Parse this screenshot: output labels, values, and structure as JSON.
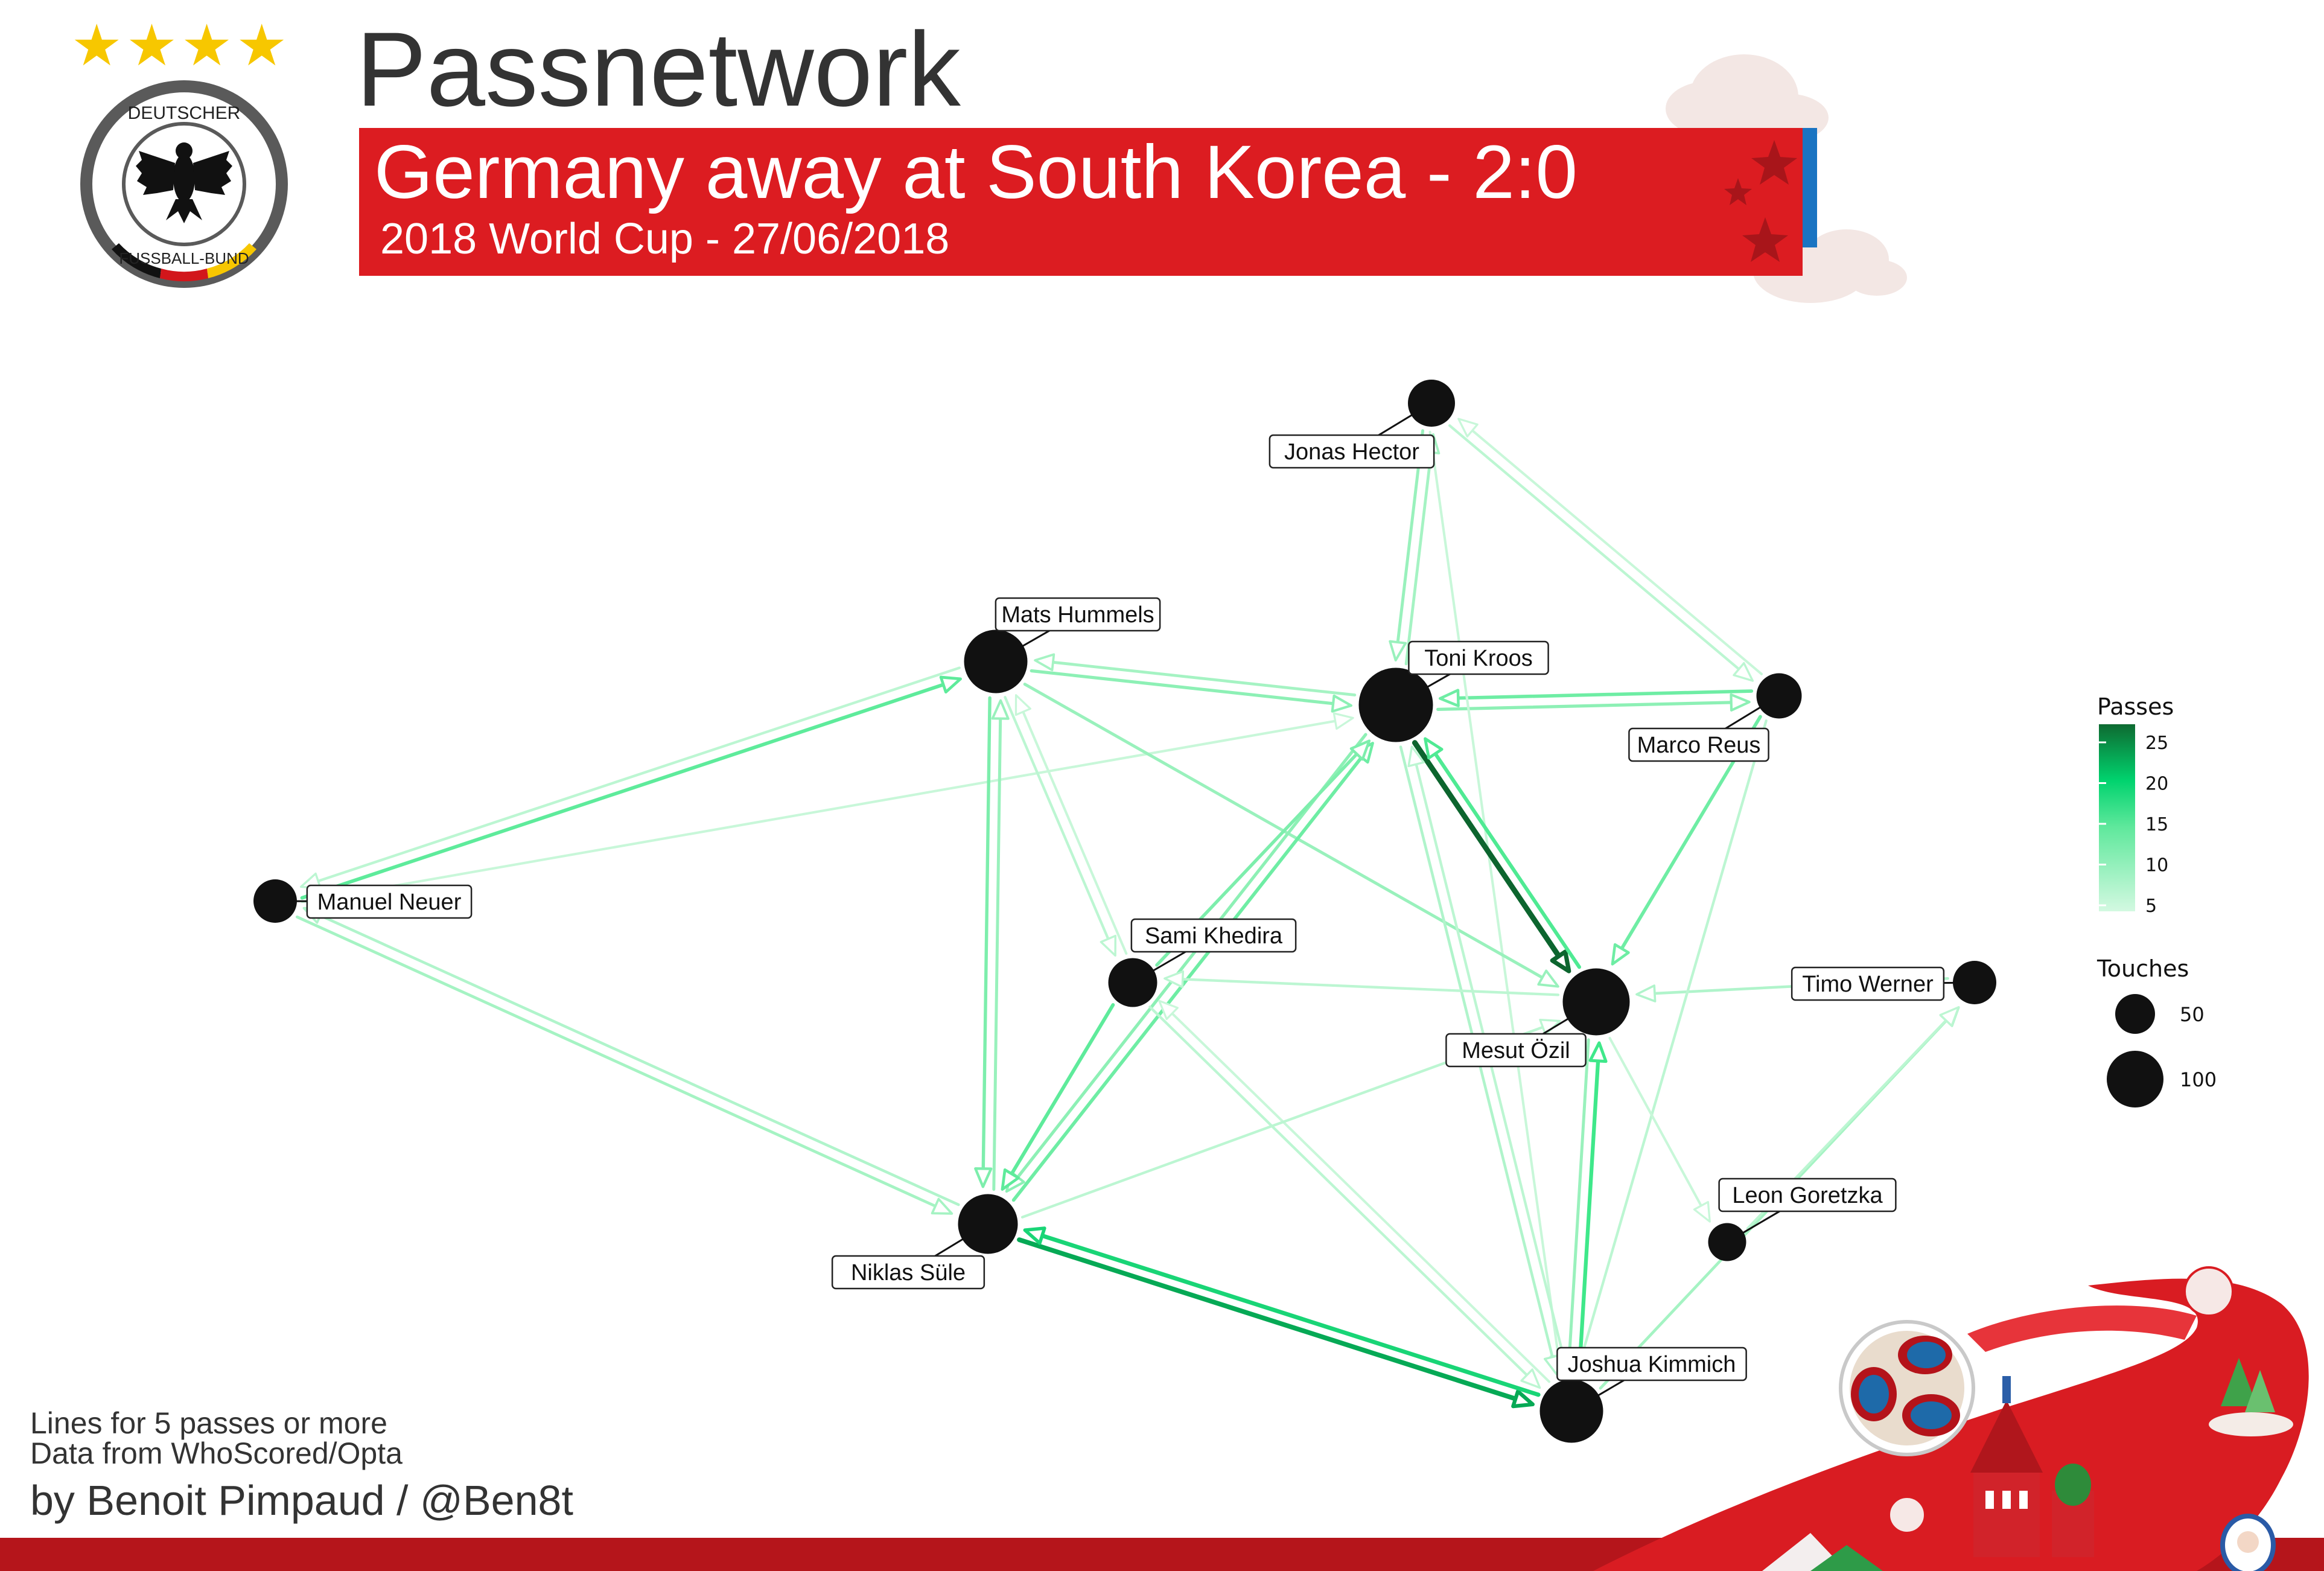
{
  "header": {
    "title": "Passnetwork",
    "banner_title": "Germany away at South Korea - 2:0",
    "banner_subtitle": "2018 World Cup - 27/06/2018",
    "stars": "★★★★",
    "logo_text_top": "DEUTSCHER",
    "logo_text_bottom": "FUSSBALL-BUND"
  },
  "colors": {
    "banner_red": "#dc1c21",
    "banner_blue": "#1a74c2",
    "star_gold": "#f7c700",
    "node": "#111111",
    "footer_red": "#b5151b",
    "pass_scale": [
      "#c8f7d9",
      "#8df0b5",
      "#3fe88a",
      "#00c868",
      "#0f7a38",
      "#0a5a29"
    ]
  },
  "chart_data": {
    "type": "network",
    "players": [
      {
        "name": "Jonas Hector"
      },
      {
        "name": "Mats Hummels"
      },
      {
        "name": "Toni Kroos"
      },
      {
        "name": "Marco Reus"
      },
      {
        "name": "Manuel Neuer"
      },
      {
        "name": "Sami Khedira"
      },
      {
        "name": "Mesut Özil"
      },
      {
        "name": "Timo Werner"
      },
      {
        "name": "Leon Goretzka"
      },
      {
        "name": "Niklas Süle"
      },
      {
        "name": "Joshua Kimmich"
      }
    ],
    "touches": {
      "Jonas Hector": 50,
      "Mats Hummels": 95,
      "Toni Kroos": 125,
      "Marco Reus": 45,
      "Manuel Neuer": 40,
      "Sami Khedira": 55,
      "Mesut Özil": 105,
      "Timo Werner": 40,
      "Leon Goretzka": 25,
      "Niklas Süle": 85,
      "Joshua Kimmich": 95
    },
    "passes": [
      {
        "from": "Mats Hummels",
        "to": "Toni Kroos",
        "count": 10
      },
      {
        "from": "Toni Kroos",
        "to": "Mats Hummels",
        "count": 8
      },
      {
        "from": "Toni Kroos",
        "to": "Marco Reus",
        "count": 10
      },
      {
        "from": "Marco Reus",
        "to": "Toni Kroos",
        "count": 12
      },
      {
        "from": "Jonas Hector",
        "to": "Toni Kroos",
        "count": 9
      },
      {
        "from": "Toni Kroos",
        "to": "Jonas Hector",
        "count": 8
      },
      {
        "from": "Jonas Hector",
        "to": "Marco Reus",
        "count": 6
      },
      {
        "from": "Marco Reus",
        "to": "Jonas Hector",
        "count": 5
      },
      {
        "from": "Jonas Hector",
        "to": "Joshua Kimmich",
        "count": 5
      },
      {
        "from": "Manuel Neuer",
        "to": "Mats Hummels",
        "count": 13
      },
      {
        "from": "Mats Hummels",
        "to": "Manuel Neuer",
        "count": 6
      },
      {
        "from": "Manuel Neuer",
        "to": "Toni Kroos",
        "count": 5
      },
      {
        "from": "Manuel Neuer",
        "to": "Niklas Süle",
        "count": 8
      },
      {
        "from": "Niklas Süle",
        "to": "Manuel Neuer",
        "count": 7
      },
      {
        "from": "Mats Hummels",
        "to": "Niklas Süle",
        "count": 11
      },
      {
        "from": "Niklas Süle",
        "to": "Mats Hummels",
        "count": 9
      },
      {
        "from": "Mats Hummels",
        "to": "Sami Khedira",
        "count": 6
      },
      {
        "from": "Sami Khedira",
        "to": "Mats Hummels",
        "count": 5
      },
      {
        "from": "Mats Hummels",
        "to": "Mesut Özil",
        "count": 9
      },
      {
        "from": "Toni Kroos",
        "to": "Mesut Özil",
        "count": 27
      },
      {
        "from": "Mesut Özil",
        "to": "Toni Kroos",
        "count": 14
      },
      {
        "from": "Toni Kroos",
        "to": "Niklas Süle",
        "count": 10
      },
      {
        "from": "Niklas Süle",
        "to": "Toni Kroos",
        "count": 12
      },
      {
        "from": "Toni Kroos",
        "to": "Joshua Kimmich",
        "count": 7
      },
      {
        "from": "Joshua Kimmich",
        "to": "Toni Kroos",
        "count": 6
      },
      {
        "from": "Sami Khedira",
        "to": "Toni Kroos",
        "count": 11
      },
      {
        "from": "Sami Khedira",
        "to": "Niklas Süle",
        "count": 13
      },
      {
        "from": "Mesut Özil",
        "to": "Sami Khedira",
        "count": 6
      },
      {
        "from": "Sami Khedira",
        "to": "Joshua Kimmich",
        "count": 6
      },
      {
        "from": "Joshua Kimmich",
        "to": "Sami Khedira",
        "count": 5
      },
      {
        "from": "Marco Reus",
        "to": "Mesut Özil",
        "count": 12
      },
      {
        "from": "Timo Werner",
        "to": "Mesut Özil",
        "count": 7
      },
      {
        "from": "Niklas Süle",
        "to": "Joshua Kimmich",
        "count": 22
      },
      {
        "from": "Joshua Kimmich",
        "to": "Niklas Süle",
        "count": 18
      },
      {
        "from": "Joshua Kimmich",
        "to": "Mesut Özil",
        "count": 15
      },
      {
        "from": "Mesut Özil",
        "to": "Joshua Kimmich",
        "count": 9
      },
      {
        "from": "Marco Reus",
        "to": "Joshua Kimmich",
        "count": 6
      },
      {
        "from": "Joshua Kimmich",
        "to": "Timo Werner",
        "count": 8
      },
      {
        "from": "Leon Goretzka",
        "to": "Timo Werner",
        "count": 6
      },
      {
        "from": "Mesut Özil",
        "to": "Leon Goretzka",
        "count": 5
      },
      {
        "from": "Niklas Süle",
        "to": "Mesut Özil",
        "count": 6
      }
    ],
    "legend": {
      "passes_title": "Passes",
      "passes_ticks": [
        "25",
        "20",
        "15",
        "10",
        "5"
      ],
      "touches_title": "Touches",
      "touches_ticks": [
        "50",
        "100"
      ]
    }
  },
  "footer": {
    "note1": "Lines for 5 passes or more",
    "note2": "Data from WhoScored/Opta",
    "credit": "by Benoit Pimpaud / @Ben8t"
  }
}
